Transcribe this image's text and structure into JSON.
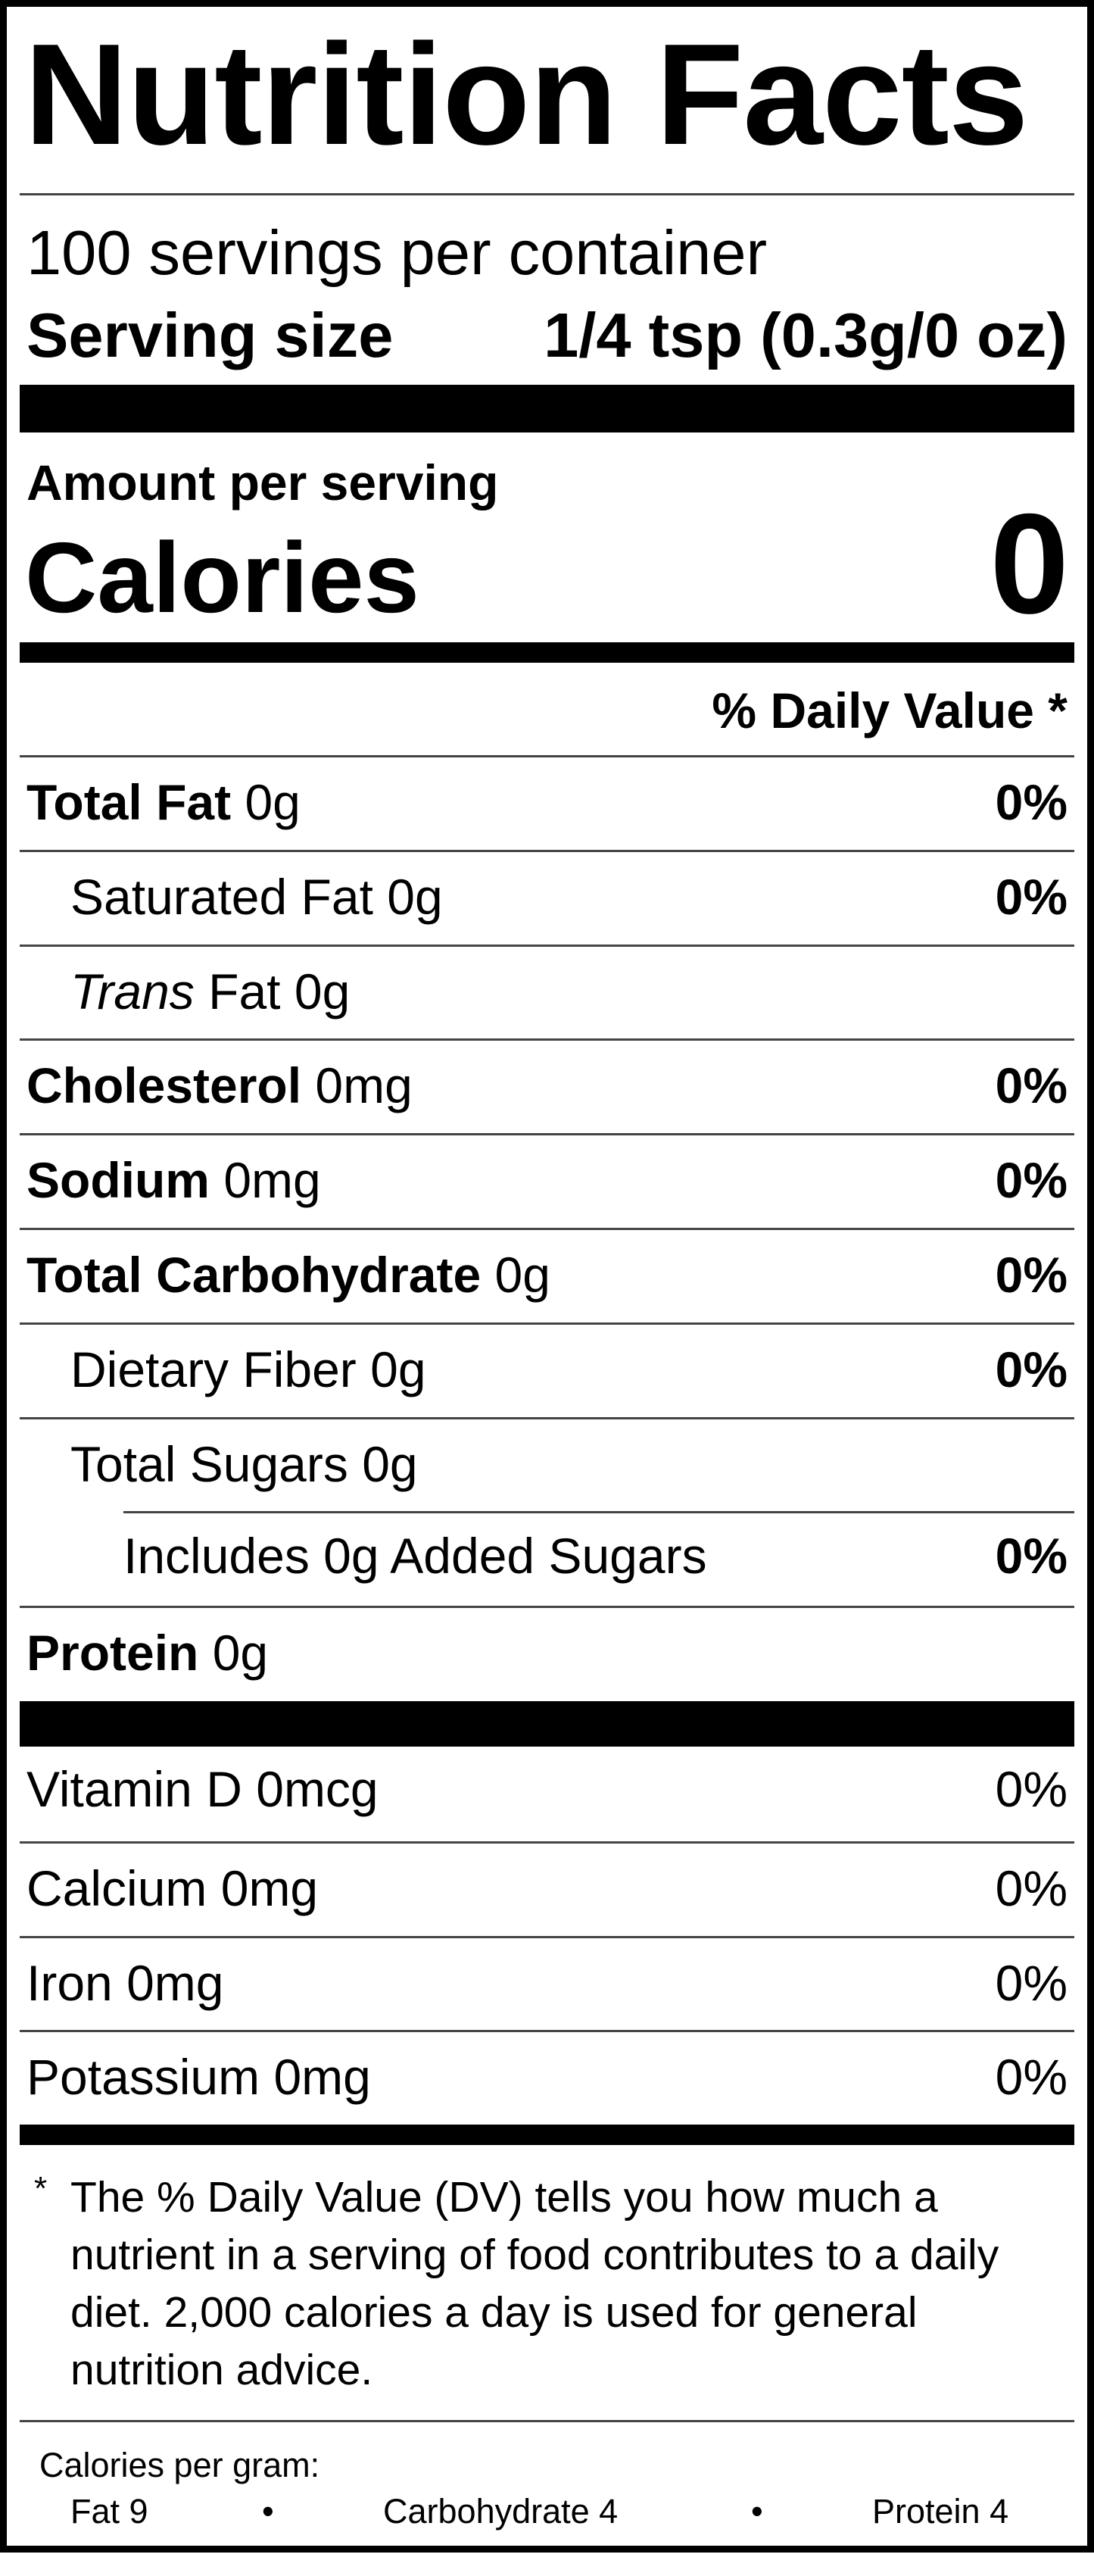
{
  "title": "Nutrition Facts",
  "servings_per_container": "100 servings per container",
  "serving_size": {
    "label": "Serving size",
    "value": "1/4 tsp (0.3g/0 oz)"
  },
  "amount_per_serving": "Amount per serving",
  "calories": {
    "label": "Calories",
    "value": "0"
  },
  "daily_value_header": "% Daily Value *",
  "nutrients": [
    {
      "label": "Total Fat",
      "amount": "0g",
      "dv": "0%"
    },
    {
      "label": "Saturated Fat",
      "amount": "0g",
      "dv": "0%"
    },
    {
      "label_italic": "Trans",
      "label": "Fat",
      "amount": "0g",
      "dv": ""
    },
    {
      "label": "Cholesterol",
      "amount": "0mg",
      "dv": "0%"
    },
    {
      "label": "Sodium",
      "amount": "0mg",
      "dv": "0%"
    },
    {
      "label": "Total Carbohydrate",
      "amount": "0g",
      "dv": "0%"
    },
    {
      "label": "Dietary Fiber",
      "amount": "0g",
      "dv": "0%"
    },
    {
      "label": "Total Sugars",
      "amount": "0g",
      "dv": ""
    },
    {
      "label": "Includes 0g Added Sugars",
      "amount": "",
      "dv": "0%"
    },
    {
      "label": "Protein",
      "amount": "0g",
      "dv": ""
    }
  ],
  "vitamins": [
    {
      "label": "Vitamin D",
      "amount": "0mcg",
      "dv": "0%"
    },
    {
      "label": "Calcium",
      "amount": "0mg",
      "dv": "0%"
    },
    {
      "label": "Iron",
      "amount": "0mg",
      "dv": "0%"
    },
    {
      "label": "Potassium",
      "amount": "0mg",
      "dv": "0%"
    }
  ],
  "footnote": {
    "asterisk": "*",
    "text": "The % Daily Value (DV) tells you how much a nutrient in a serving of food contributes to a daily diet. 2,000 calories a day is used for general nutrition advice."
  },
  "calories_per_gram": {
    "label": "Calories per gram:",
    "fat": "Fat 9",
    "carbohydrate": "Carbohydrate 4",
    "protein": "Protein 4",
    "separator": "•"
  }
}
